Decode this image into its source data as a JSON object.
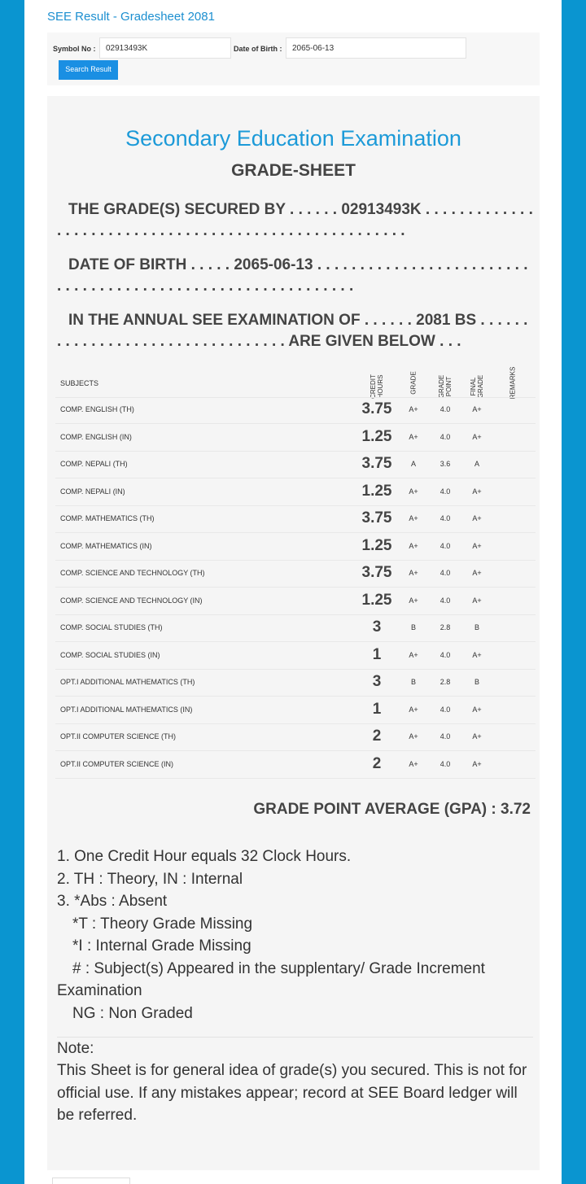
{
  "header": {
    "title": "SEE Result - Gradesheet 2081"
  },
  "form": {
    "symbol_label": "Symbol No :",
    "symbol_value": "02913493K",
    "dob_label": "Date of Birth :",
    "dob_value": "2065-06-13",
    "button": "Search Result"
  },
  "sheet": {
    "title": "Secondary Education Examination",
    "subtitle": "GRADE-SHEET",
    "statements": [
      "THE GRADE(S) SECURED BY . . . . . . 02913493K . . . . . . . . . . . . . . . . . . . . . . . . . . . . . . . . . . . . . . . . . . . . . . . . . . . . . .",
      "DATE OF BIRTH . . . . . 2065-06-13 . . . . . . . . . . . . . . . . . . . . . . . . . . . . . . . . . . . . . . . . . . . . . . . . . . . . . . . . . . . .",
      "IN THE ANNUAL SEE EXAMINATION OF . . . . . . 2081 BS . . . . . . . . . . . . . . . . . . . . . . . . . . . . . . . . . ARE GIVEN BELOW . . ."
    ],
    "table": {
      "headers": [
        "SUBJECTS",
        "CREDIT HOURS",
        "GRADE",
        "GRADE POINT",
        "FINAL GRADE",
        "REMARKS"
      ],
      "rows": [
        [
          "COMP. ENGLISH (TH)",
          "3.75",
          "A+",
          "4.0",
          "A+"
        ],
        [
          "COMP. ENGLISH (IN)",
          "1.25",
          "A+",
          "4.0",
          "A+"
        ],
        [
          "COMP. NEPALI (TH)",
          "3.75",
          "A",
          "3.6",
          "A"
        ],
        [
          "COMP. NEPALI (IN)",
          "1.25",
          "A+",
          "4.0",
          "A+"
        ],
        [
          "COMP. MATHEMATICS (TH)",
          "3.75",
          "A+",
          "4.0",
          "A+"
        ],
        [
          "COMP. MATHEMATICS (IN)",
          "1.25",
          "A+",
          "4.0",
          "A+"
        ],
        [
          "COMP. SCIENCE AND TECHNOLOGY (TH)",
          "3.75",
          "A+",
          "4.0",
          "A+"
        ],
        [
          "COMP. SCIENCE AND TECHNOLOGY (IN)",
          "1.25",
          "A+",
          "4.0",
          "A+"
        ],
        [
          "COMP. SOCIAL STUDIES (TH)",
          "3",
          "B",
          "2.8",
          "B"
        ],
        [
          "COMP. SOCIAL STUDIES (IN)",
          "1",
          "A+",
          "4.0",
          "A+"
        ],
        [
          "OPT.I ADDITIONAL MATHEMATICS (TH)",
          "3",
          "B",
          "2.8",
          "B"
        ],
        [
          "OPT.I ADDITIONAL MATHEMATICS (IN)",
          "1",
          "A+",
          "4.0",
          "A+"
        ],
        [
          "OPT.II COMPUTER SCIENCE (TH)",
          "2",
          "A+",
          "4.0",
          "A+"
        ],
        [
          "OPT.II COMPUTER SCIENCE (IN)",
          "2",
          "A+",
          "4.0",
          "A+"
        ]
      ]
    },
    "gpa": "GRADE POINT AVERAGE (GPA) : 3.72",
    "notes": [
      "1. One Credit Hour equals 32 Clock Hours.",
      "2. TH : Theory, IN : Internal",
      "3. *Abs : Absent",
      "*T : Theory Grade Missing",
      "*I : Internal Grade Missing",
      "# : Subject(s) Appeared in the supplentary/ Grade Increment Examination",
      "NG : Non Graded"
    ],
    "note_heading": "Note:",
    "note_text": "This Sheet is for general idea of grade(s) you secured. This is not for official use. If any mistakes appear; record at SEE Board ledger will be referred."
  }
}
